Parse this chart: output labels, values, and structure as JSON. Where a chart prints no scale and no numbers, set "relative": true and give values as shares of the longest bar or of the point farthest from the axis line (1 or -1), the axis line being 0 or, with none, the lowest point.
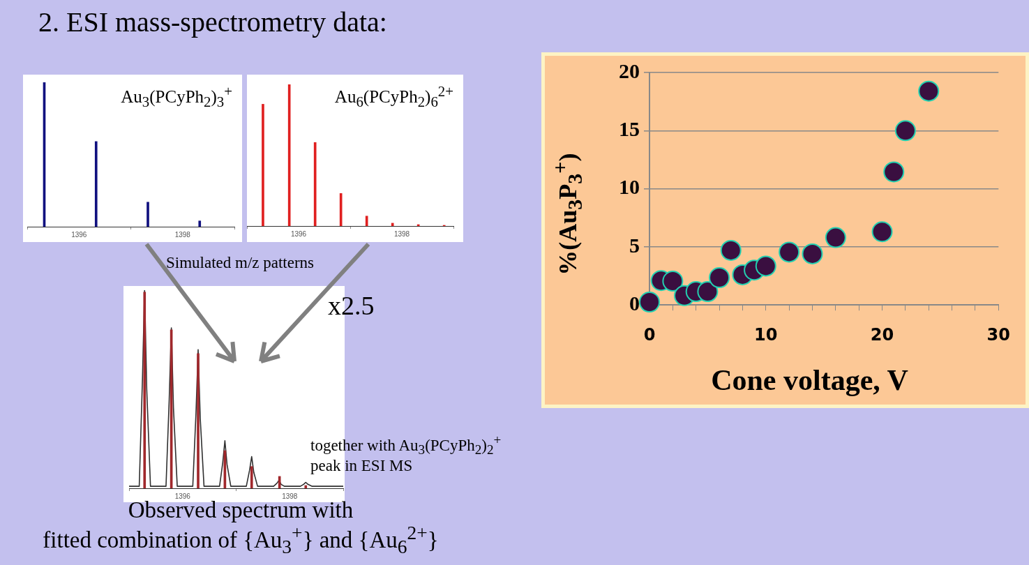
{
  "chart_data": [
    {
      "type": "bar",
      "title": "Au$_{3}$(PCyPh$_{2}$)$_{3}$$^{+}$",
      "relative": true,
      "x": [
        1395.33,
        1396.33,
        1397.33,
        1398.33
      ],
      "values": [
        1,
        0.59,
        0.17,
        0.04
      ],
      "color": "#10107f",
      "xlim": [
        1395,
        1399
      ],
      "xticks": [
        1396,
        1398
      ],
      "annotations": [
        "2. ESI mass-spectrometry data:"
      ]
    },
    {
      "type": "bar",
      "title": "Au$_{6}$(PCyPh$_{2}$)$_{6}$$^{2+}$",
      "relative": true,
      "x": [
        1395.31,
        1395.82,
        1396.32,
        1396.82,
        1397.32,
        1397.82,
        1398.32,
        1398.82
      ],
      "values": [
        0.86,
        1,
        0.59,
        0.23,
        0.07,
        0.02,
        0.01,
        0.005
      ],
      "color": "#e02020",
      "xlim": [
        1395,
        1399
      ],
      "xticks": [
        1396,
        1398
      ],
      "annotations": [
        "Simulated m/z patterns"
      ]
    },
    {
      "type": "line",
      "relative": true,
      "xlim": [
        1395,
        1399
      ],
      "xticks": [
        1396,
        1398
      ],
      "series": [
        {
          "type": "line",
          "color": "#303030",
          "x": [
            1395.0,
            1395.19,
            1395.25,
            1395.29,
            1395.33,
            1395.4,
            1395.69,
            1395.75,
            1395.79,
            1395.83,
            1395.9,
            1396.19,
            1396.25,
            1396.29,
            1396.33,
            1396.4,
            1396.69,
            1396.75,
            1396.79,
            1396.83,
            1396.9,
            1397.19,
            1397.25,
            1397.29,
            1397.33,
            1397.4,
            1397.7,
            1397.76,
            1397.8,
            1397.84,
            1397.9,
            1398.2,
            1398.26,
            1398.3,
            1398.34,
            1398.42,
            1399.0
          ],
          "values": [
            0.01,
            0.01,
            0.55,
            1,
            0.5,
            0.01,
            0.01,
            0.45,
            0.81,
            0.4,
            0.01,
            0.01,
            0.38,
            0.7,
            0.35,
            0.01,
            0.01,
            0.13,
            0.24,
            0.12,
            0.01,
            0.01,
            0.09,
            0.16,
            0.08,
            0.01,
            0.01,
            0.025,
            0.04,
            0.02,
            0.01,
            0.01,
            0.02,
            0.03,
            0.02,
            0.01,
            0.01
          ]
        },
        {
          "type": "bar",
          "color": "#a0282c",
          "x": [
            1395.29,
            1395.79,
            1396.29,
            1396.79,
            1397.29,
            1397.81,
            1398.3
          ],
          "values": [
            0.99,
            0.8,
            0.68,
            0.19,
            0.11,
            0.06,
            0.014
          ]
        }
      ],
      "annotations": [
        "x2.5",
        "together with Au$_{3}$(PCyPh$_{2}$)$_{2}$$^{+}$\npeak in ESI MS",
        "Observed spectrum with\nfitted combination of {Au$_{3}$$^{+}$} and {Au$_{6}$$^{2+}$}"
      ]
    },
    {
      "type": "scatter",
      "xlabel": "Cone voltage, V",
      "ylabel": "%(Au$_{3}$P$_{3}$$^{+}$)",
      "x": [
        0,
        1,
        2,
        3,
        4,
        5,
        6,
        7,
        8,
        9,
        10,
        12,
        14,
        16,
        20,
        21,
        22,
        24
      ],
      "values": [
        0.25,
        2.1,
        2.05,
        0.8,
        1.15,
        1.15,
        2.35,
        4.7,
        2.6,
        3.0,
        3.35,
        4.55,
        4.4,
        5.8,
        6.3,
        11.45,
        15.0,
        18.4
      ],
      "color": "#3a0f40",
      "marker": "circle",
      "grid": "y",
      "xlim": [
        0,
        30
      ],
      "ylim": [
        0,
        20
      ],
      "xticks": [
        0,
        {
          "value": 2,
          "label": null
        },
        {
          "value": 4,
          "label": null
        },
        {
          "value": 6,
          "label": null
        },
        {
          "value": 8,
          "label": null
        },
        10,
        {
          "value": 12,
          "label": null
        },
        {
          "value": 14,
          "label": null
        },
        {
          "value": 16,
          "label": null
        },
        {
          "value": 18,
          "label": null
        },
        20,
        {
          "value": 22,
          "label": null
        },
        {
          "value": 24,
          "label": null
        },
        {
          "value": 26,
          "label": null
        },
        {
          "value": 28,
          "label": null
        },
        30
      ],
      "yticks": [
        0,
        5,
        10,
        15,
        20
      ]
    }
  ]
}
